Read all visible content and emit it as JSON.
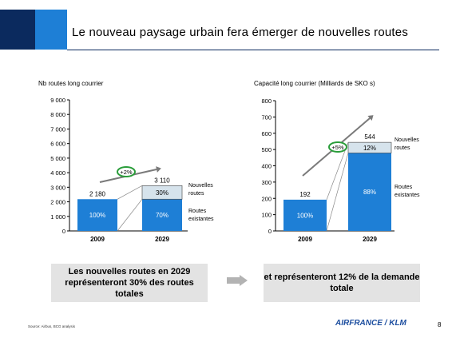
{
  "title": "Le nouveau paysage urbain fera émerger de nouvelles routes",
  "chart_data": [
    {
      "type": "bar",
      "title": "Nb routes long courrier",
      "categories": [
        "2009",
        "2029"
      ],
      "ylim": [
        0,
        9000
      ],
      "yticks": [
        "0",
        "1 000",
        "2 000",
        "3 000",
        "4 000",
        "5 000",
        "6 000",
        "7 000",
        "8 000",
        "9 000"
      ],
      "series": [
        {
          "name": "Routes existantes",
          "values": [
            2180,
            2180
          ],
          "labels": [
            "100%",
            "70%"
          ]
        },
        {
          "name": "Nouvelles routes",
          "values": [
            0,
            930
          ],
          "labels": [
            "",
            "30%"
          ]
        }
      ],
      "totals": [
        "2 180",
        "3 110"
      ],
      "growth": "+2%"
    },
    {
      "type": "bar",
      "title": "Capacité long courrier (Milliards de SKO s)",
      "categories": [
        "2009",
        "2029"
      ],
      "ylim": [
        0,
        800
      ],
      "yticks": [
        "0",
        "100",
        "200",
        "300",
        "400",
        "500",
        "600",
        "700",
        "800"
      ],
      "series": [
        {
          "name": "Routes existantes",
          "values": [
            192,
            479
          ],
          "labels": [
            "100%",
            "88%"
          ]
        },
        {
          "name": "Nouvelles routes",
          "values": [
            0,
            65
          ],
          "labels": [
            "",
            "12%"
          ]
        }
      ],
      "totals": [
        "192",
        "544"
      ],
      "growth": "+5%"
    }
  ],
  "messages": {
    "left": "Les nouvelles routes en 2029 représenteront 30% des routes totales",
    "right": "et représenteront 12% de la demande totale"
  },
  "source": "Source: Airbus, BCG analysis",
  "logo": "AIRFRANCE / KLM",
  "page_number": "8"
}
